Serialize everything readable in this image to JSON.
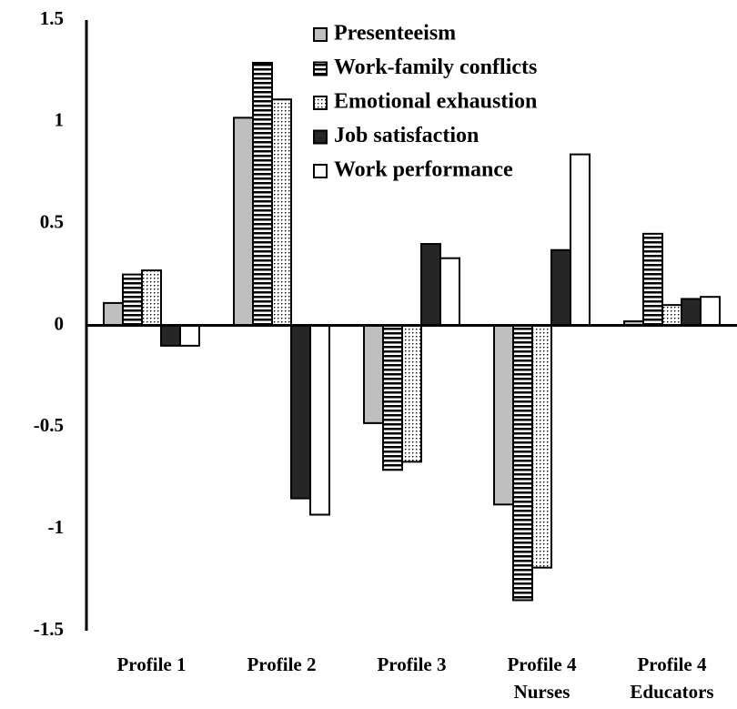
{
  "chart_data": {
    "type": "bar",
    "categories": [
      "Profile 1",
      "Profile 2",
      "Profile 3",
      "Profile 4 Nurses",
      "Profile 4 Educators"
    ],
    "series": [
      {
        "name": "Presenteeism",
        "color": "#bfbfbf",
        "pattern": "solid",
        "values": [
          0.11,
          1.02,
          -0.48,
          -0.88,
          0.02
        ]
      },
      {
        "name": "Work-family conflicts",
        "color": "#000000",
        "pattern": "horizontal-stripes",
        "values": [
          0.25,
          1.29,
          -0.71,
          -1.35,
          0.45
        ]
      },
      {
        "name": "Emotional exhaustion",
        "color": "#000000",
        "pattern": "dots",
        "values": [
          0.27,
          1.11,
          -0.67,
          -1.19,
          0.1
        ]
      },
      {
        "name": "Job satisfaction",
        "color": "#262626",
        "pattern": "solid",
        "values": [
          -0.1,
          -0.85,
          0.4,
          0.37,
          0.13
        ]
      },
      {
        "name": "Work performance",
        "color": "#ffffff",
        "pattern": "solid",
        "values": [
          -0.1,
          -0.93,
          0.33,
          0.84,
          0.14
        ]
      }
    ],
    "ylim": [
      -1.5,
      1.5
    ],
    "yticks": [
      1.5,
      1,
      0.5,
      0,
      -0.5,
      -1,
      -1.5
    ],
    "grid": false,
    "legend": "top"
  }
}
